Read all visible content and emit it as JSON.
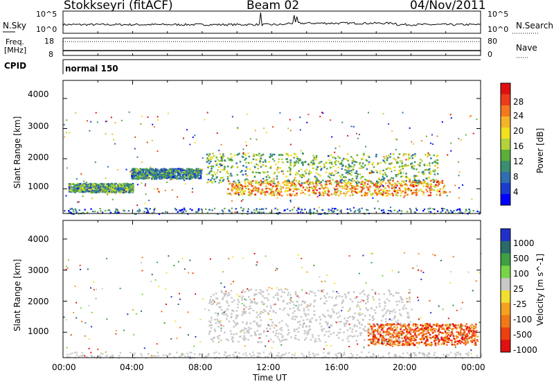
{
  "header": {
    "radar": "Stokkseyri (fitACF)",
    "beam": "Beam 02",
    "date": "04/Nov/2011"
  },
  "top_panel": {
    "left_label": "N.Sky",
    "right_label": "N.Search",
    "left_ticks": [
      "10^5",
      "10^0"
    ],
    "right_ticks": [
      "10^5",
      "10^0"
    ]
  },
  "freq_panel": {
    "left_label_1": "Freq.",
    "left_label_2": "[MHz]",
    "right_label": "Nave",
    "left_ticks": [
      "18",
      "8"
    ],
    "right_ticks": [
      "80",
      "0"
    ]
  },
  "cpid": {
    "label": "CPID",
    "mode": "normal 150"
  },
  "chart_data": [
    {
      "type": "heatmap",
      "title": "",
      "xlabel": "Time UT",
      "ylabel": "Slant Range [km]",
      "x_ticks": [
        "00:00",
        "04:00",
        "08:00",
        "12:00",
        "16:00",
        "20:00",
        "00:00"
      ],
      "y_ticks": [
        "1000",
        "2000",
        "3000",
        "4000"
      ],
      "xlim": [
        0,
        24
      ],
      "ylim": [
        180,
        4600
      ],
      "colorbar": {
        "label": "Power [dB]",
        "ticks": [
          "4",
          "8",
          "12",
          "16",
          "20",
          "24",
          "28"
        ],
        "colors": [
          "#0000ff",
          "#1a3ccc",
          "#2f6fb0",
          "#3a8f70",
          "#5cae3a",
          "#b4d23a",
          "#f0e020",
          "#f4b428",
          "#f47820",
          "#ec3c1c",
          "#e01010"
        ]
      },
      "regions": [
        {
          "x": [
            9.4,
            22.0
          ],
          "y": [
            800,
            1300
          ],
          "level": 20
        },
        {
          "x": [
            8.2,
            21.5
          ],
          "y": [
            1200,
            2200
          ],
          "level": 12
        },
        {
          "x": [
            3.9,
            7.9
          ],
          "y": [
            1350,
            1700
          ],
          "level": 8
        },
        {
          "x": [
            0.3,
            4.0
          ],
          "y": [
            900,
            1200
          ],
          "level": 10
        }
      ]
    },
    {
      "type": "heatmap",
      "title": "",
      "xlabel": "Time UT",
      "ylabel": "Slant Range [km]",
      "x_ticks": [
        "00:00",
        "04:00",
        "08:00",
        "12:00",
        "16:00",
        "20:00",
        "00:00"
      ],
      "y_ticks": [
        "1000",
        "2000",
        "3000",
        "4000"
      ],
      "xlim": [
        0,
        24
      ],
      "ylim": [
        180,
        4600
      ],
      "colorbar": {
        "label": "Velocity [m s^-1]",
        "ticks": [
          "1000",
          "500",
          "100",
          "25",
          "-25",
          "-100",
          "-500",
          "-1000"
        ],
        "colors": [
          "#2030c8",
          "#2a6a6a",
          "#3ea040",
          "#7ad448",
          "#c8c8c8",
          "#f0e030",
          "#f4a020",
          "#f07818",
          "#ec4010",
          "#e01010"
        ]
      },
      "regions": [
        {
          "x": [
            8.3,
            20.0
          ],
          "y": [
            700,
            2400
          ],
          "level": 0
        },
        {
          "x": [
            17.5,
            23.8
          ],
          "y": [
            600,
            1300
          ],
          "level": -300
        }
      ]
    }
  ]
}
